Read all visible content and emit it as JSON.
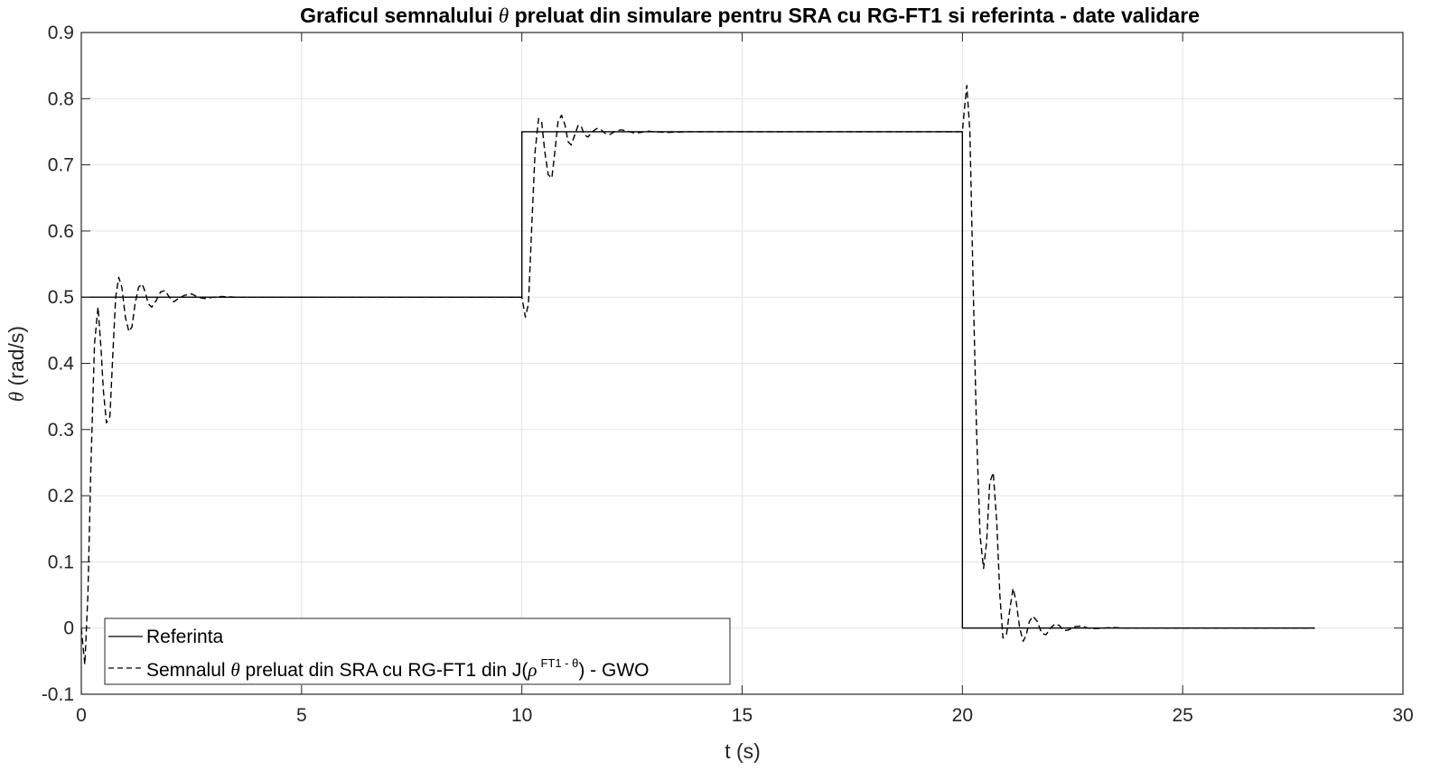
{
  "chart_data": {
    "type": "line",
    "title_parts": [
      "Graficul semnalului ",
      "θ",
      " preluat din simulare pentru SRA cu RG-FT1 si referinta - date validare"
    ],
    "xlabel": "t (s)",
    "ylabel_symbol": "θ",
    "ylabel_unit": " (rad/s)",
    "xlim": [
      0,
      30
    ],
    "ylim": [
      -0.1,
      0.9
    ],
    "xticks": [
      0,
      5,
      10,
      15,
      20,
      25,
      30
    ],
    "yticks": [
      -0.1,
      0,
      0.1,
      0.2,
      0.3,
      0.4,
      0.5,
      0.6,
      0.7,
      0.8,
      0.9
    ],
    "xtick_labels": [
      "0",
      "5",
      "10",
      "15",
      "20",
      "25",
      "30"
    ],
    "ytick_labels": [
      "-0.1",
      "0",
      "0.1",
      "0.2",
      "0.3",
      "0.4",
      "0.5",
      "0.6",
      "0.7",
      "0.8",
      "0.9"
    ],
    "grid": true,
    "legend_position": "bottom-left",
    "series": [
      {
        "name": "Referinta",
        "style": "solid",
        "color": "#000000",
        "x": [
          0,
          10,
          10,
          20,
          20,
          28
        ],
        "y": [
          0.5,
          0.5,
          0.75,
          0.75,
          0,
          0
        ]
      },
      {
        "name_parts": {
          "a": "Semnalul ",
          "theta": "θ",
          "b": " preluat din SRA cu RG-FT1 din J(",
          "rho": "ρ",
          "sup": "FT1 - θ",
          "c": ") - GWO"
        },
        "style": "dashed",
        "color": "#000000",
        "x": [
          0,
          0.08,
          0.15,
          0.22,
          0.3,
          0.38,
          0.45,
          0.5,
          0.57,
          0.65,
          0.72,
          0.78,
          0.85,
          0.92,
          1.0,
          1.08,
          1.15,
          1.22,
          1.3,
          1.38,
          1.45,
          1.52,
          1.6,
          1.7,
          1.8,
          1.9,
          2.0,
          2.1,
          2.2,
          2.35,
          2.5,
          2.65,
          2.8,
          3.0,
          3.2,
          3.5,
          4.0,
          5,
          7,
          10.0,
          10.08,
          10.15,
          10.22,
          10.3,
          10.38,
          10.45,
          10.52,
          10.6,
          10.68,
          10.75,
          10.82,
          10.9,
          10.98,
          11.05,
          11.12,
          11.2,
          11.28,
          11.35,
          11.42,
          11.5,
          11.6,
          11.7,
          11.8,
          11.9,
          12.0,
          12.1,
          12.25,
          12.4,
          12.55,
          12.7,
          12.85,
          13.0,
          13.3,
          13.7,
          14.5,
          17,
          20.0,
          20.04,
          20.1,
          20.17,
          20.25,
          20.32,
          20.4,
          20.48,
          20.55,
          20.62,
          20.7,
          20.78,
          20.85,
          20.92,
          21.0,
          21.08,
          21.15,
          21.22,
          21.3,
          21.38,
          21.45,
          21.52,
          21.6,
          21.7,
          21.8,
          21.9,
          22.0,
          22.1,
          22.2,
          22.3,
          22.4,
          22.55,
          22.7,
          22.85,
          23.0,
          23.2,
          23.4,
          23.7,
          24.0,
          25,
          28
        ],
        "y": [
          0,
          -0.055,
          0.05,
          0.25,
          0.43,
          0.485,
          0.42,
          0.36,
          0.31,
          0.32,
          0.42,
          0.5,
          0.53,
          0.515,
          0.47,
          0.448,
          0.455,
          0.49,
          0.515,
          0.52,
          0.508,
          0.49,
          0.485,
          0.495,
          0.508,
          0.51,
          0.5,
          0.493,
          0.498,
          0.503,
          0.505,
          0.5,
          0.498,
          0.5,
          0.501,
          0.5,
          0.5,
          0.5,
          0.5,
          0.5,
          0.47,
          0.49,
          0.6,
          0.72,
          0.77,
          0.765,
          0.72,
          0.685,
          0.68,
          0.72,
          0.765,
          0.775,
          0.76,
          0.735,
          0.73,
          0.745,
          0.76,
          0.758,
          0.745,
          0.742,
          0.75,
          0.755,
          0.753,
          0.747,
          0.746,
          0.75,
          0.753,
          0.751,
          0.748,
          0.749,
          0.751,
          0.75,
          0.749,
          0.75,
          0.75,
          0.75,
          0.75,
          0.78,
          0.82,
          0.75,
          0.5,
          0.3,
          0.14,
          0.09,
          0.13,
          0.22,
          0.235,
          0.16,
          0.05,
          -0.015,
          -0.01,
          0.03,
          0.06,
          0.04,
          0.0,
          -0.02,
          -0.01,
          0.01,
          0.018,
          0.01,
          -0.008,
          -0.01,
          0.0,
          0.006,
          0.004,
          -0.004,
          -0.003,
          0.002,
          0.003,
          0.0,
          -0.001,
          0.0,
          0.001,
          0.0,
          0.0,
          0.0,
          0.0
        ]
      }
    ]
  }
}
